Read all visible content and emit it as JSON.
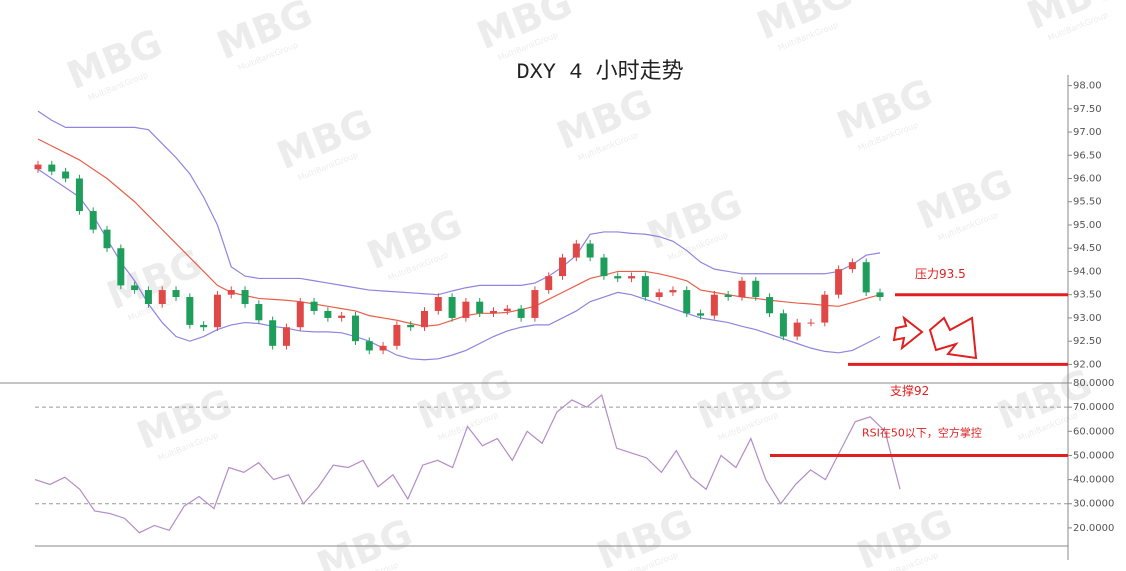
{
  "title": "DXY 4 小时走势",
  "watermark": {
    "text": "MBG",
    "sub": "MultiBankGroup"
  },
  "chart_data": [
    {
      "type": "candlestick",
      "ylim": [
        91.6,
        98.55
      ],
      "yticks": [
        {
          "value": 92,
          "label": "92.00"
        },
        {
          "value": 92.5,
          "label": "92.50"
        },
        {
          "value": 93,
          "label": "93.00"
        },
        {
          "value": 93.5,
          "label": "93.50"
        },
        {
          "value": 94,
          "label": "94.00"
        },
        {
          "value": 94.5,
          "label": "94.50"
        },
        {
          "value": 95,
          "label": "95.00"
        },
        {
          "value": 95.5,
          "label": "95.50"
        },
        {
          "value": 96,
          "label": "96.00"
        },
        {
          "value": 96.5,
          "label": "96.50"
        },
        {
          "value": 97,
          "label": "97.00"
        },
        {
          "value": 97.5,
          "label": "97.50"
        },
        {
          "value": 98,
          "label": "98.00"
        }
      ],
      "up_color": "#e04848",
      "down_color": "#1e9e5a",
      "open": [
        96.2,
        96.3,
        96.15,
        96.0,
        95.3,
        94.9,
        94.5,
        93.7,
        93.6,
        93.3,
        93.6,
        93.45,
        92.85,
        92.8,
        93.5,
        93.6,
        93.3,
        92.95,
        92.4,
        92.8,
        93.35,
        93.15,
        93.0,
        93.05,
        92.5,
        92.3,
        92.4,
        92.85,
        92.8,
        93.15,
        93.45,
        93.0,
        93.35,
        93.1,
        93.15,
        93.2,
        93.0,
        93.6,
        93.9,
        94.3,
        94.6,
        94.3,
        93.9,
        93.85,
        93.9,
        93.45,
        93.55,
        93.6,
        93.1,
        93.05,
        93.5,
        93.45,
        93.8,
        93.45,
        93.1,
        92.6,
        92.9,
        92.9,
        93.5,
        94.05,
        94.2,
        93.55
      ],
      "high": [
        96.38,
        96.38,
        96.23,
        96.08,
        95.38,
        94.98,
        94.58,
        93.78,
        93.68,
        93.68,
        93.68,
        93.53,
        92.93,
        93.58,
        93.68,
        93.68,
        93.38,
        93.03,
        92.88,
        93.43,
        93.43,
        93.23,
        93.13,
        93.13,
        92.58,
        92.48,
        92.93,
        92.93,
        93.23,
        93.53,
        93.53,
        93.43,
        93.43,
        93.23,
        93.28,
        93.28,
        93.68,
        93.98,
        94.38,
        94.68,
        94.68,
        94.38,
        93.98,
        93.98,
        93.98,
        93.63,
        93.68,
        93.68,
        93.18,
        93.58,
        93.58,
        93.88,
        93.88,
        93.53,
        93.18,
        92.98,
        92.98,
        93.58,
        94.13,
        94.28,
        94.28,
        93.63
      ],
      "low": [
        96.12,
        96.07,
        95.92,
        95.22,
        94.82,
        94.42,
        93.62,
        93.52,
        93.22,
        93.22,
        93.37,
        92.77,
        92.72,
        92.72,
        93.42,
        93.22,
        92.87,
        92.32,
        92.32,
        92.72,
        93.07,
        92.92,
        92.92,
        92.42,
        92.22,
        92.22,
        92.32,
        92.72,
        92.72,
        93.07,
        92.92,
        92.92,
        93.02,
        93.02,
        93.07,
        92.92,
        92.92,
        93.52,
        93.82,
        94.22,
        94.22,
        93.82,
        93.77,
        93.77,
        93.37,
        93.37,
        93.47,
        93.02,
        92.97,
        92.97,
        93.37,
        93.37,
        93.37,
        93.02,
        92.52,
        92.52,
        92.82,
        92.82,
        93.42,
        93.97,
        93.47,
        93.37
      ],
      "close": [
        96.3,
        96.15,
        96.0,
        95.3,
        94.9,
        94.5,
        93.7,
        93.6,
        93.3,
        93.6,
        93.45,
        92.85,
        92.8,
        93.5,
        93.6,
        93.3,
        92.95,
        92.4,
        92.8,
        93.35,
        93.15,
        93.0,
        93.05,
        92.5,
        92.3,
        92.4,
        92.85,
        92.8,
        93.15,
        93.45,
        93.0,
        93.35,
        93.1,
        93.15,
        93.2,
        93.0,
        93.6,
        93.9,
        94.3,
        94.6,
        94.3,
        93.9,
        93.85,
        93.9,
        93.45,
        93.55,
        93.6,
        93.1,
        93.05,
        93.5,
        93.45,
        93.8,
        93.45,
        93.1,
        92.6,
        92.9,
        92.9,
        93.5,
        94.05,
        94.2,
        93.55,
        93.45
      ],
      "bands": [
        {
          "color": "#8f84e0",
          "values": [
            97.45,
            97.25,
            97.1,
            97.1,
            97.1,
            97.1,
            97.1,
            97.1,
            97.05,
            96.75,
            96.45,
            96.1,
            95.6,
            95.0,
            94.1,
            93.9,
            93.85,
            93.85,
            93.85,
            93.85,
            93.8,
            93.75,
            93.7,
            93.65,
            93.6,
            93.58,
            93.56,
            93.54,
            93.52,
            93.5,
            93.58,
            93.65,
            93.7,
            93.7,
            93.7,
            93.7,
            93.75,
            93.9,
            94.1,
            94.35,
            94.8,
            94.85,
            94.85,
            94.82,
            94.8,
            94.75,
            94.65,
            94.45,
            94.2,
            94.05,
            94.0,
            93.95,
            93.95,
            93.95,
            93.95,
            93.95,
            93.95,
            93.95,
            94.0,
            94.15,
            94.35,
            94.4
          ]
        },
        {
          "color": "#e8604a",
          "values": [
            96.85,
            96.7,
            96.55,
            96.4,
            96.2,
            96.0,
            95.75,
            95.5,
            95.2,
            94.9,
            94.6,
            94.3,
            94.0,
            93.7,
            93.55,
            93.48,
            93.42,
            93.4,
            93.38,
            93.35,
            93.3,
            93.25,
            93.2,
            93.15,
            93.05,
            93.0,
            92.95,
            92.88,
            92.82,
            92.85,
            92.95,
            93.05,
            93.1,
            93.1,
            93.12,
            93.18,
            93.25,
            93.4,
            93.55,
            93.7,
            93.85,
            93.92,
            94.0,
            94.0,
            94.0,
            93.95,
            93.88,
            93.8,
            93.6,
            93.55,
            93.5,
            93.45,
            93.42,
            93.38,
            93.35,
            93.32,
            93.3,
            93.27,
            93.25,
            93.33,
            93.42,
            93.5
          ]
        },
        {
          "color": "#8f84e0",
          "values": [
            96.2,
            96.0,
            95.8,
            95.6,
            95.2,
            94.7,
            94.2,
            93.8,
            93.3,
            92.9,
            92.6,
            92.5,
            92.6,
            92.75,
            92.85,
            92.9,
            92.88,
            92.82,
            92.78,
            92.72,
            92.7,
            92.7,
            92.68,
            92.6,
            92.5,
            92.35,
            92.2,
            92.12,
            92.1,
            92.12,
            92.2,
            92.3,
            92.45,
            92.6,
            92.72,
            92.8,
            92.85,
            92.85,
            93.0,
            93.15,
            93.35,
            93.45,
            93.55,
            93.5,
            93.4,
            93.3,
            93.2,
            93.1,
            93.0,
            92.95,
            92.9,
            92.82,
            92.75,
            92.65,
            92.55,
            92.45,
            92.35,
            92.28,
            92.25,
            92.3,
            92.45,
            92.6
          ]
        }
      ],
      "annotations": [
        {
          "text": "压力93.5",
          "value": 93.5,
          "color": "#e02020"
        },
        {
          "text": "支撑92",
          "value": 92,
          "color": "#e02020"
        }
      ]
    },
    {
      "type": "line",
      "ylim": [
        12.5,
        80
      ],
      "yticks": [
        {
          "value": 20,
          "label": "20.0000"
        },
        {
          "value": 30,
          "label": "30.0000"
        },
        {
          "value": 40,
          "label": "40.0000"
        },
        {
          "value": 50,
          "label": "50.0000"
        },
        {
          "value": 60,
          "label": "60.0000"
        },
        {
          "value": 70,
          "label": "70.0000"
        },
        {
          "value": 80,
          "label": "80.0000"
        }
      ],
      "ref_lines": [
        70,
        30
      ],
      "color": "#b48cc8",
      "values": [
        40,
        38,
        41,
        36,
        27,
        26,
        24,
        18,
        21,
        19,
        29,
        33,
        28,
        45,
        43,
        47,
        40,
        42,
        30,
        37,
        46,
        45,
        48,
        37,
        42,
        32,
        46,
        48,
        45,
        62,
        54,
        57,
        48,
        60,
        55,
        68,
        73,
        70,
        75,
        53,
        51,
        49,
        43,
        52,
        41,
        36,
        50,
        45,
        57,
        40,
        30,
        38,
        44,
        40,
        52,
        64,
        66,
        60,
        36
      ],
      "annotations": [
        {
          "text": "RSI在50以下，空方掌控",
          "value": 50,
          "color": "#e02020"
        }
      ]
    }
  ]
}
